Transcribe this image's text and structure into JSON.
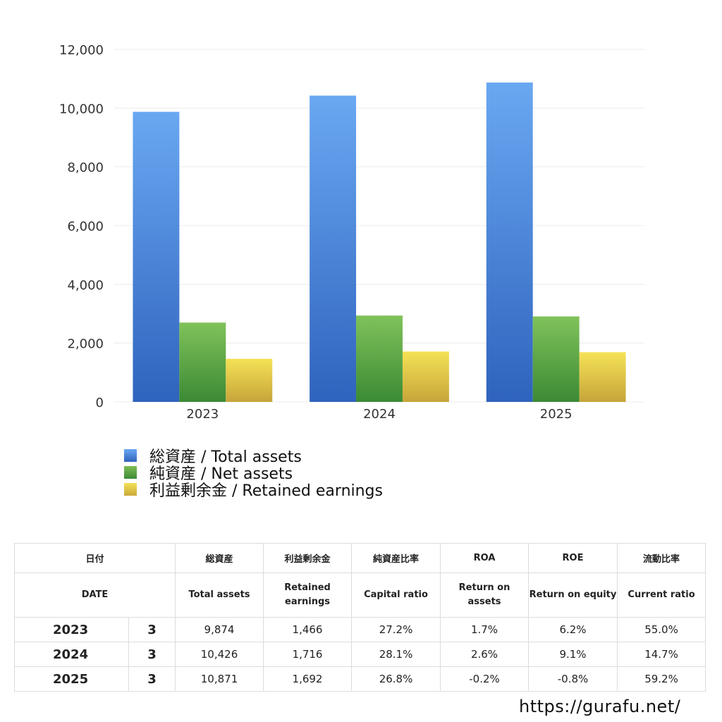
{
  "chart_data": {
    "type": "bar",
    "categories": [
      "2023",
      "2024",
      "2025"
    ],
    "ylim": [
      0,
      12000
    ],
    "yticks": [
      "0",
      "2,000",
      "4,000",
      "6,000",
      "8,000",
      "10,000",
      "12,000"
    ],
    "grid": true,
    "legend_position": "bottom-left",
    "series": [
      {
        "name": "総資産 / Total assets",
        "values": [
          9874,
          10426,
          10871
        ],
        "color": "#4a86df"
      },
      {
        "name": "純資産 / Net assets",
        "values": [
          2700,
          2940,
          2910
        ],
        "color": "#5ca445"
      },
      {
        "name": "利益剰余金 / Retained earnings",
        "values": [
          1466,
          1716,
          1692
        ],
        "color": "#e8cd4a"
      }
    ]
  },
  "table": {
    "headers_ja": [
      "日付",
      "総資産",
      "利益剰余金",
      "純資産比率",
      "ROA",
      "ROE",
      "流動比率"
    ],
    "headers_en": [
      "DATE",
      "Total assets",
      "Retained earnings",
      "Capital ratio",
      "Return on assets",
      "Return on equity",
      "Current ratio"
    ],
    "rows": [
      {
        "year": "2023",
        "month": "3",
        "total_assets": "9,874",
        "retained": "1,466",
        "capital_ratio": "27.2%",
        "roa": "1.7%",
        "roe": "6.2%",
        "current_ratio": "55.0%"
      },
      {
        "year": "2024",
        "month": "3",
        "total_assets": "10,426",
        "retained": "1,716",
        "capital_ratio": "28.1%",
        "roa": "2.6%",
        "roe": "9.1%",
        "current_ratio": "14.7%"
      },
      {
        "year": "2025",
        "month": "3",
        "total_assets": "10,871",
        "retained": "1,692",
        "capital_ratio": "26.8%",
        "roa": "-0.2%",
        "roe": "-0.8%",
        "current_ratio": "59.2%"
      }
    ]
  },
  "footer": {
    "url": "https://gurafu.net/"
  }
}
